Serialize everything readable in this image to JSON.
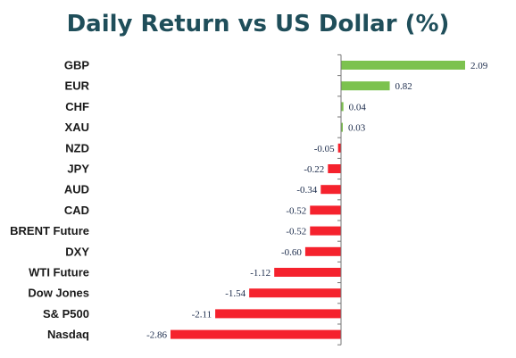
{
  "chart_data": {
    "type": "bar",
    "orientation": "horizontal",
    "title": "Daily Return vs US Dollar (%)",
    "categories": [
      "GBP",
      "EUR",
      "CHF",
      "XAU",
      "NZD",
      "JPY",
      "AUD",
      "CAD",
      "BRENT Future",
      "DXY",
      "WTI Future",
      "Dow Jones",
      "S& P500",
      "Nasdaq"
    ],
    "values": [
      2.09,
      0.82,
      0.04,
      0.03,
      -0.05,
      -0.22,
      -0.34,
      -0.52,
      -0.52,
      -0.6,
      -1.12,
      -1.54,
      -2.11,
      -2.86
    ],
    "value_labels": [
      "2.09",
      "0.82",
      "0.04",
      "0.03",
      "-0.05",
      "-0.22",
      "-0.34",
      "-0.52",
      "-0.52",
      "-0.60",
      "-1.12",
      "-1.54",
      "-2.11",
      "-2.86"
    ],
    "xlim": [
      -2.86,
      2.09
    ],
    "xlabel": "",
    "ylabel": "",
    "grid": false,
    "legend": "none",
    "colors": {
      "positive": "#7cc24f",
      "negative": "#f5222d",
      "axis": "#777777",
      "title": "#1f4e5a"
    }
  }
}
